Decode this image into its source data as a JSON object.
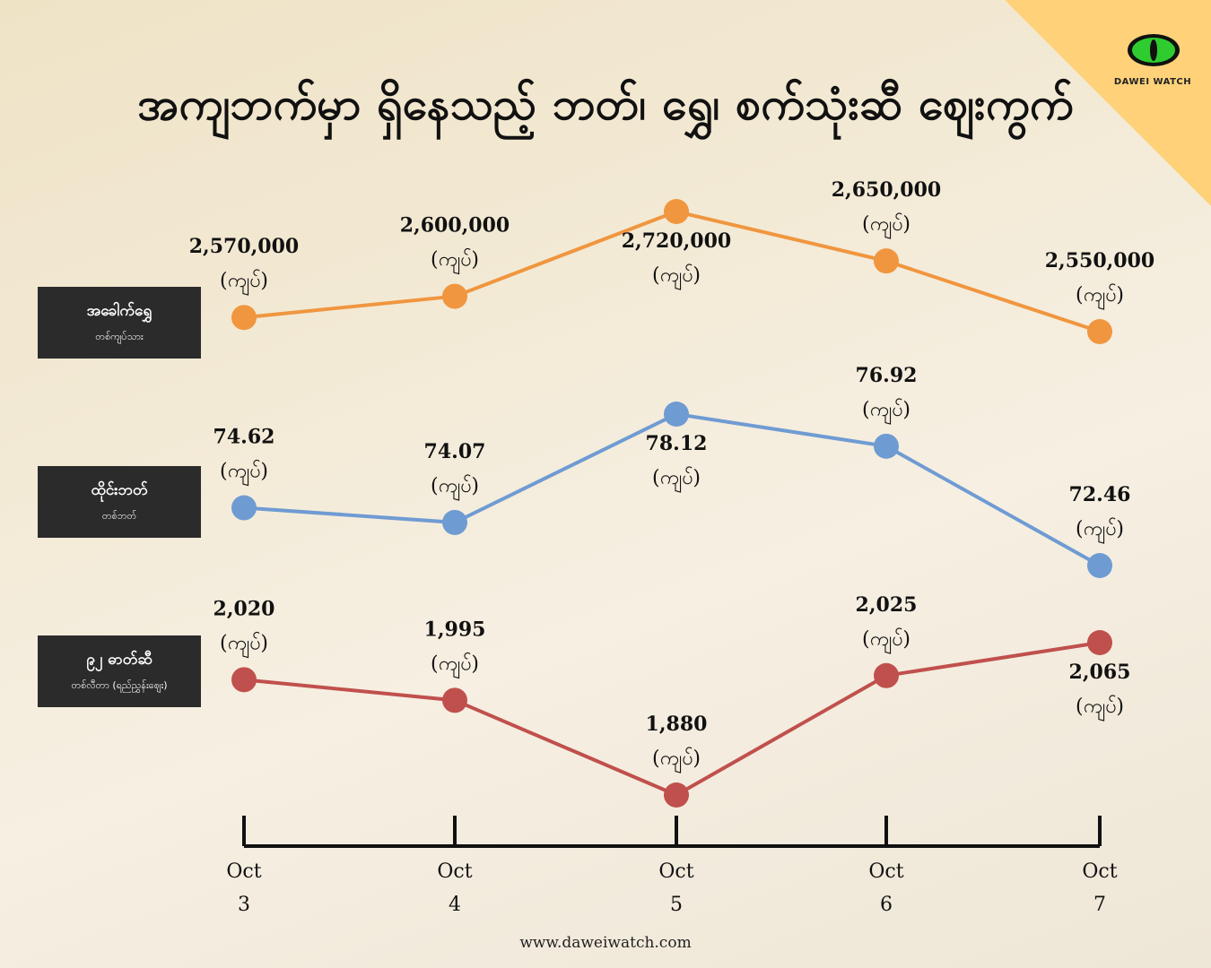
{
  "title": "အကျဘက်မှာ ရှိနေသည့် ဘတ်၊ ရွှေ၊ စက်သုံးဆီ ဈေးကွက်",
  "brand": {
    "logo_text": "DAWEI WATCH",
    "eye_color": "#2ecc2e"
  },
  "footer": "www.daweiwatch.com",
  "series_boxes": [
    {
      "name": "အခေါက်ရွှေ",
      "unit": "တစ်ကျပ်သား"
    },
    {
      "name": "ထိုင်းဘတ်",
      "unit": "တစ်ဘတ်"
    },
    {
      "name": "၉၂ ဓာတ်ဆီ",
      "unit": "တစ်လီတာ (ရည်ညွှန်းဈေး)"
    }
  ],
  "chart_data": {
    "type": "line",
    "categories": [
      {
        "month": "Oct",
        "day": "3"
      },
      {
        "month": "Oct",
        "day": "4"
      },
      {
        "month": "Oct",
        "day": "5"
      },
      {
        "month": "Oct",
        "day": "6"
      },
      {
        "month": "Oct",
        "day": "7"
      }
    ],
    "currency_label": "(ကျပ်)",
    "series": [
      {
        "name": "အခေါက်ရွှေ",
        "color": "#f0963f",
        "values": [
          2570000,
          2600000,
          2720000,
          2650000,
          2550000
        ],
        "labels": [
          "2,570,000",
          "2,600,000",
          "2,720,000",
          "2,650,000",
          "2,550,000"
        ],
        "label_position": [
          "above",
          "above",
          "below",
          "above",
          "above"
        ]
      },
      {
        "name": "ထိုင်းဘတ်",
        "color": "#6f9bd3",
        "values": [
          74.62,
          74.07,
          78.12,
          76.92,
          72.46
        ],
        "labels": [
          "74.62",
          "74.07",
          "78.12",
          "76.92",
          "72.46"
        ],
        "label_position": [
          "above",
          "above",
          "below",
          "above",
          "above"
        ]
      },
      {
        "name": "၉၂ ဓာတ်ဆီ",
        "color": "#c0504d",
        "values": [
          2020,
          1995,
          1880,
          2025,
          2065
        ],
        "labels": [
          "2,020",
          "1,995",
          "1,880",
          "2,025",
          "2,065"
        ],
        "label_position": [
          "above",
          "above",
          "above",
          "above",
          "below"
        ]
      }
    ]
  }
}
